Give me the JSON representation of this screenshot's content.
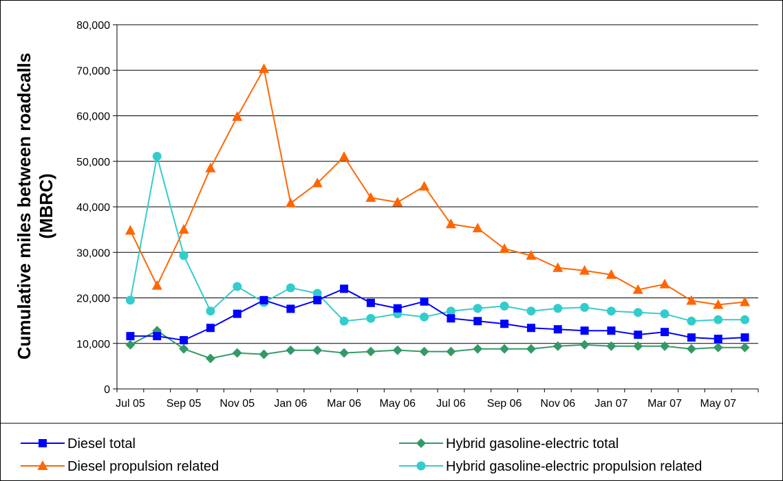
{
  "chart_data": {
    "type": "line",
    "ylabel": [
      "Cumulative miles between roadcalls",
      "(MBRC)"
    ],
    "xlabel": "",
    "ylim": [
      0,
      80000
    ],
    "yticks": [
      "0",
      "10,000",
      "20,000",
      "30,000",
      "40,000",
      "50,000",
      "60,000",
      "70,000",
      "80,000"
    ],
    "ytick_values": [
      0,
      10000,
      20000,
      30000,
      40000,
      50000,
      60000,
      70000,
      80000
    ],
    "categories": [
      "Jul 05",
      "Aug 05",
      "Sep 05",
      "Oct 05",
      "Nov 05",
      "Dec 05",
      "Jan 06",
      "Feb 06",
      "Mar 06",
      "Apr 06",
      "May 06",
      "Jun 06",
      "Jul 06",
      "Aug 06",
      "Sep 06",
      "Oct 06",
      "Nov 06",
      "Dec 06",
      "Jan 07",
      "Feb 07",
      "Mar 07",
      "Apr 07",
      "May 07",
      "Jun 07"
    ],
    "xtick_labels": [
      "Jul 05",
      "",
      "Sep 05",
      "",
      "Nov 05",
      "",
      "Jan 06",
      "",
      "Mar 06",
      "",
      "May 06",
      "",
      "Jul 06",
      "",
      "Sep 06",
      "",
      "Nov 06",
      "",
      "Jan 07",
      "",
      "Mar 07",
      "",
      "May 07",
      ""
    ],
    "grid": true,
    "legend_position": "bottom",
    "series": [
      {
        "name": "Diesel total",
        "color": "#0000ff",
        "marker": "square",
        "values": [
          11600,
          11600,
          10700,
          13400,
          16500,
          19500,
          17600,
          19500,
          22000,
          18900,
          17700,
          19200,
          15500,
          14900,
          14300,
          13400,
          13100,
          12800,
          12800,
          11900,
          12500,
          11300,
          11000,
          11300
        ]
      },
      {
        "name": "Hybrid gasoline-electric total",
        "color": "#339966",
        "marker": "diamond",
        "values": [
          9700,
          12800,
          8800,
          6700,
          7900,
          7600,
          8500,
          8500,
          7900,
          8200,
          8500,
          8200,
          8200,
          8800,
          8800,
          8800,
          9400,
          9700,
          9400,
          9400,
          9400,
          8800,
          9100,
          9100
        ]
      },
      {
        "name": "Diesel propulsion related",
        "color": "#ff6600",
        "marker": "triangle",
        "values": [
          34800,
          22700,
          35000,
          48500,
          59800,
          70300,
          40800,
          45200,
          51000,
          42000,
          41000,
          44500,
          36200,
          35300,
          30800,
          29300,
          26600,
          26000,
          25100,
          21800,
          23000,
          19400,
          18500,
          19100
        ]
      },
      {
        "name": "Hybrid gasoline-electric propulsion related",
        "color": "#33cccc",
        "marker": "circle",
        "values": [
          19500,
          51100,
          29300,
          17100,
          22500,
          19000,
          22200,
          21000,
          14900,
          15500,
          16500,
          15800,
          17100,
          17700,
          18200,
          17100,
          17700,
          17900,
          17100,
          16800,
          16500,
          14900,
          15200,
          15200
        ]
      }
    ]
  }
}
